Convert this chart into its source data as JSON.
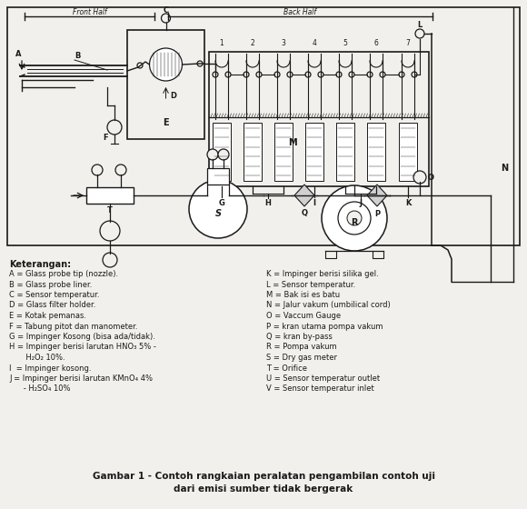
{
  "bg_color": "#f2f0ec",
  "black": "#1a1a1a",
  "caption_line1": "Gambar 1 - Contoh rangkaian peralatan pengambilan contoh uji",
  "caption_line2": "dari emisi sumber tidak bergerak",
  "legend_header": "Keterangan:",
  "legend_left": [
    "A = Glass probe tip (nozzle).",
    "B = Glass probe liner.",
    "C = Sensor temperatur.",
    "D = Glass filter holder.",
    "E = Kotak pemanas.",
    "F = Tabung pitot dan manometer.",
    "G = Impinger Kosong (bisa ada/tidak).",
    "H = Impinger berisi larutan HNO₃ 5% -",
    "       H₂O₂ 10%.",
    "I  = Impinger kosong.",
    "J = Impinger berisi larutan KMnO₄ 4%",
    "      - H₂SO₄ 10%"
  ],
  "legend_right": [
    "K = Impinger berisi silika gel.",
    "L = Sensor temperatur.",
    "M = Bak isi es batu",
    "N = Jalur vakum (umbilical cord)",
    "O = Vaccum Gauge",
    "P = kran utama pompa vakum",
    "Q = kran by-pass",
    "R = Pompa vakum",
    "S = Dry gas meter",
    "T = Orifice",
    "U = Sensor temperatur outlet",
    "V = Sensor temperatur inlet"
  ]
}
